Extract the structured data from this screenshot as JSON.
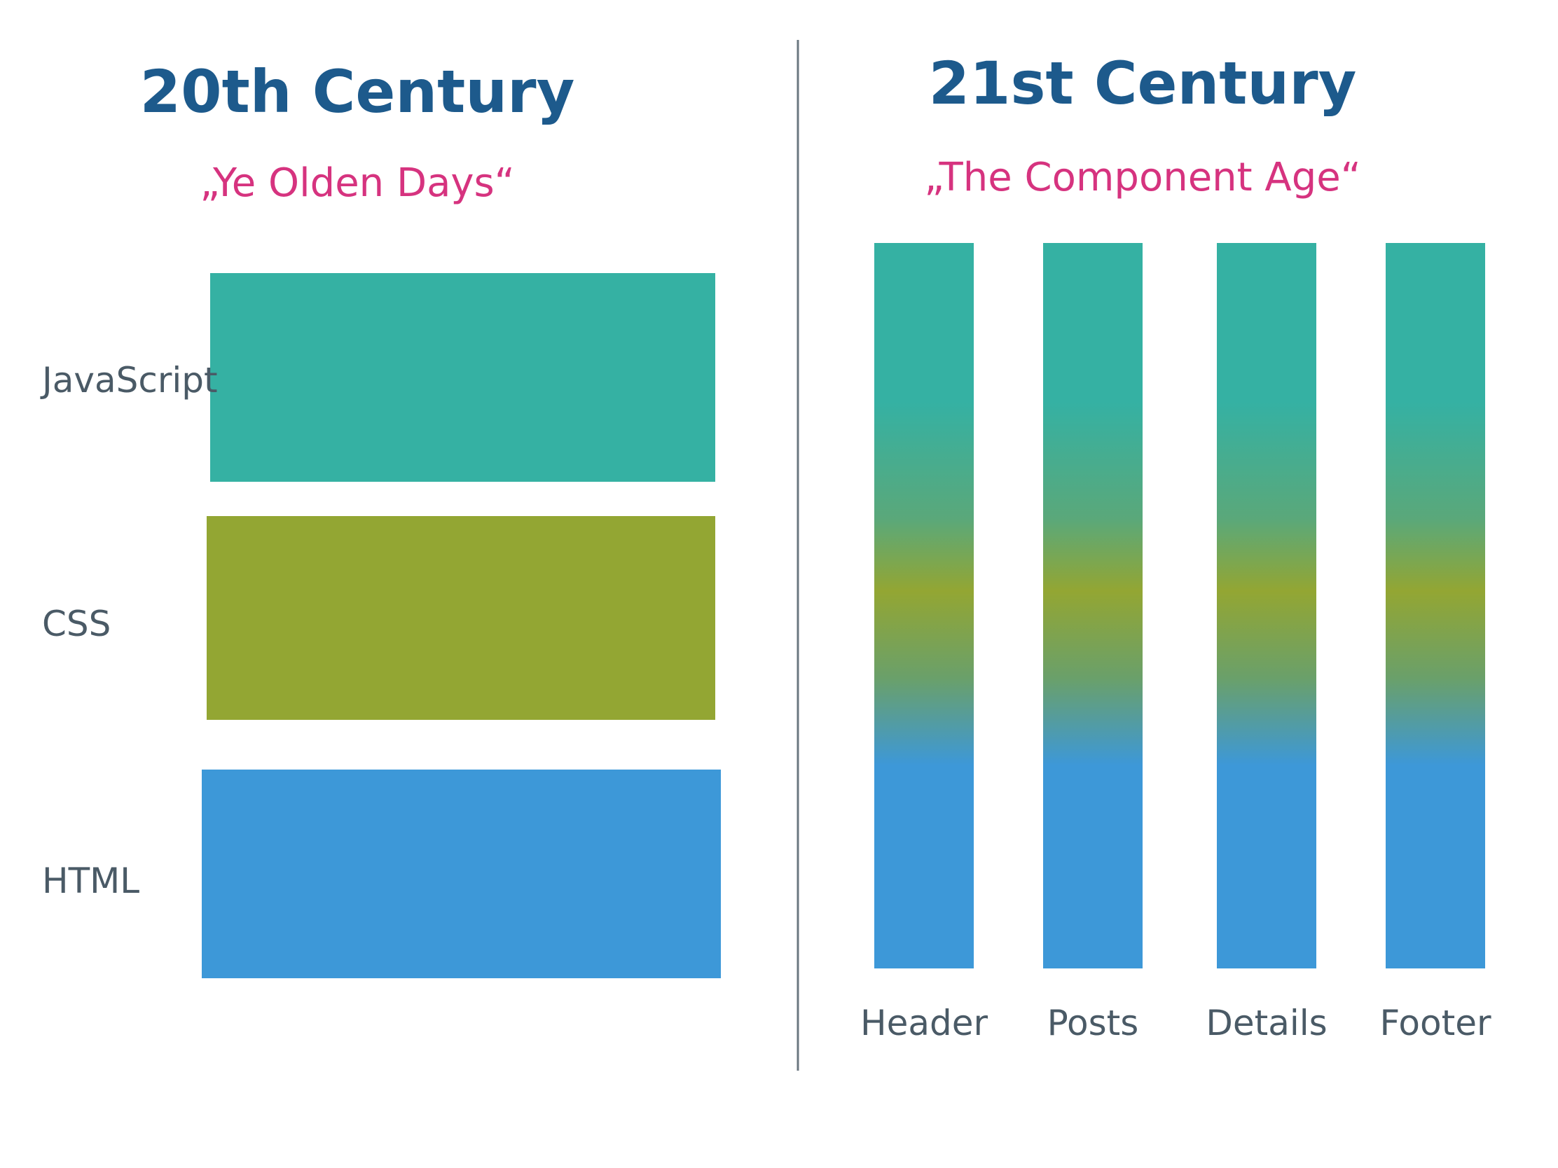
{
  "left": {
    "title": "20th Century",
    "subtitle": "„Ye Olden Days“",
    "layers": [
      "JavaScript",
      "CSS",
      "HTML"
    ]
  },
  "right": {
    "title": "21st Century",
    "subtitle": "„The Component Age“",
    "columns": [
      "Header",
      "Posts",
      "Details",
      "Footer"
    ]
  }
}
